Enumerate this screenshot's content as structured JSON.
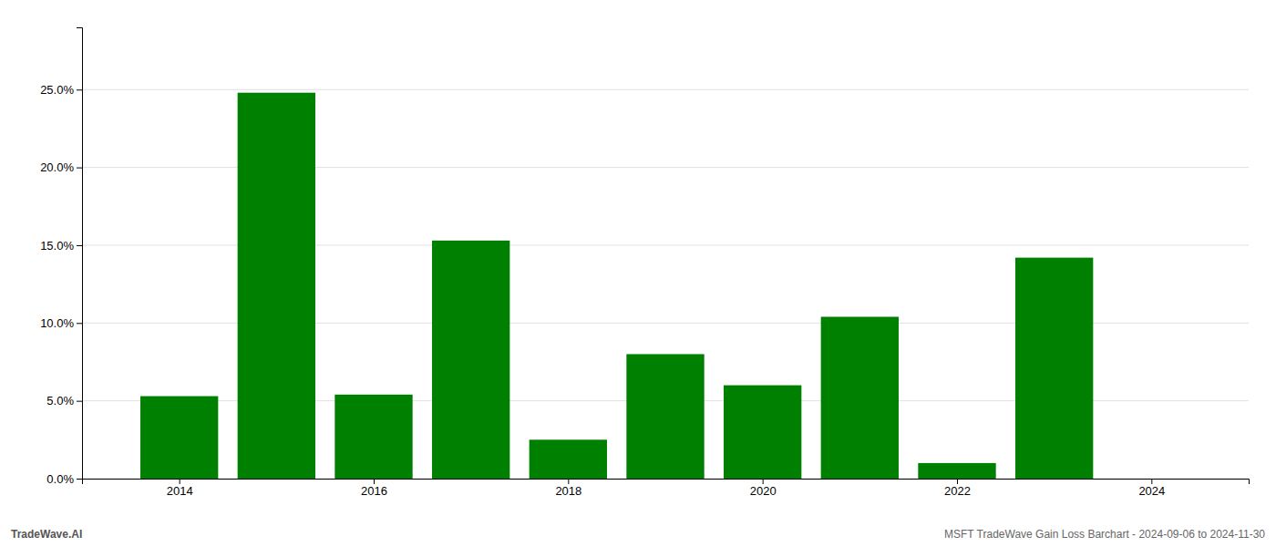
{
  "chart_data": {
    "type": "bar",
    "title": "MSFT TradeWave Gain Loss Barchart - 2024-09-06 to 2024-11-30",
    "annotations": [
      "TradeWave.AI"
    ],
    "x": [
      2014,
      2015,
      2016,
      2017,
      2018,
      2019,
      2020,
      2021,
      2022,
      2023,
      2024
    ],
    "values": [
      0.053,
      0.248,
      0.054,
      0.153,
      0.025,
      0.08,
      0.06,
      0.104,
      0.01,
      0.142,
      0.0
    ],
    "color": "#008000",
    "xlim": [
      2013.0,
      2025.0
    ],
    "xticks": [
      2014,
      2016,
      2018,
      2020,
      2022,
      2024
    ],
    "ylim": [
      0,
      0.29
    ],
    "yticks": [
      {
        "value": 0.0,
        "label": "0.0%"
      },
      {
        "value": 0.05,
        "label": "5.0%"
      },
      {
        "value": 0.1,
        "label": "10.0%"
      },
      {
        "value": 0.15,
        "label": "15.0%"
      },
      {
        "value": 0.2,
        "label": "20.0%"
      },
      {
        "value": 0.25,
        "label": "25.0%"
      }
    ],
    "grid": true
  }
}
